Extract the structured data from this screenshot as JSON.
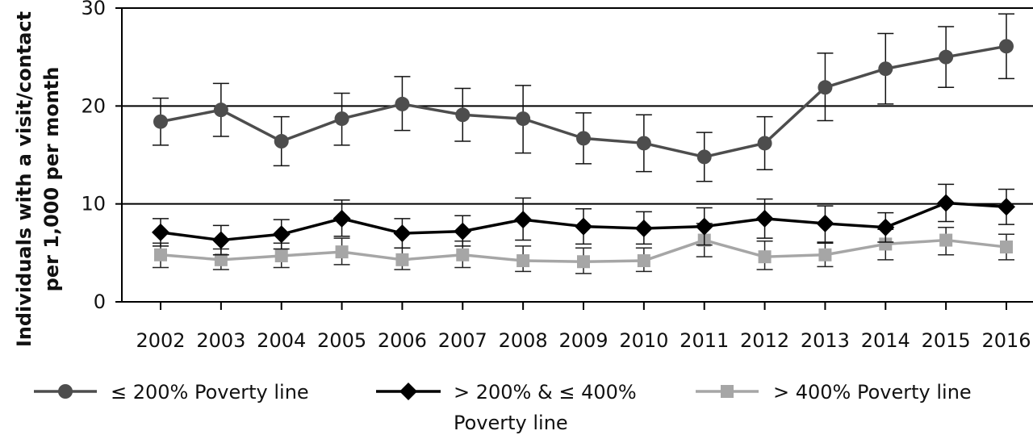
{
  "chart_data": {
    "type": "line",
    "title": "",
    "xlabel": "",
    "ylabel_lines": [
      "Individuals with a visit/contact",
      "per 1,000 per month"
    ],
    "categories": [
      "2002",
      "2003",
      "2004",
      "2005",
      "2006",
      "2007",
      "2008",
      "2009",
      "2010",
      "2011",
      "2012",
      "2013",
      "2014",
      "2015",
      "2016"
    ],
    "ylim": [
      0,
      30
    ],
    "yticks": [
      0,
      10,
      20,
      30
    ],
    "gridlines_y": [
      10,
      20,
      30
    ],
    "grid": true,
    "legend_position": "bottom",
    "series": [
      {
        "name": "≤ 200% Poverty line",
        "legend_lines": [
          "≤ 200% Poverty line"
        ],
        "marker": "circle",
        "color": "#4d4d4d",
        "values": [
          18.4,
          19.6,
          16.4,
          18.7,
          20.2,
          19.1,
          18.7,
          16.7,
          16.2,
          14.8,
          16.2,
          21.9,
          23.8,
          25.0,
          26.1
        ],
        "err_low": [
          16.0,
          16.9,
          13.9,
          16.0,
          17.5,
          16.4,
          15.2,
          14.1,
          13.3,
          12.3,
          13.5,
          18.5,
          20.2,
          21.9,
          22.8
        ],
        "err_high": [
          20.8,
          22.3,
          18.9,
          21.3,
          23.0,
          21.8,
          22.1,
          19.3,
          19.1,
          17.3,
          18.9,
          25.4,
          27.4,
          28.1,
          29.4
        ]
      },
      {
        "name": "> 200% & ≤ 400% Poverty line",
        "legend_lines": [
          "> 200% & ≤ 400%",
          "Poverty line"
        ],
        "marker": "diamond",
        "color": "#000000",
        "values": [
          7.1,
          6.3,
          6.9,
          8.5,
          7.0,
          7.2,
          8.4,
          7.7,
          7.5,
          7.7,
          8.5,
          8.0,
          7.6,
          10.1,
          9.7
        ],
        "err_low": [
          5.7,
          4.8,
          5.4,
          6.7,
          5.5,
          5.7,
          6.3,
          5.9,
          5.9,
          5.8,
          6.5,
          6.0,
          6.1,
          8.2,
          7.9
        ],
        "err_high": [
          8.5,
          7.8,
          8.4,
          10.4,
          8.5,
          8.8,
          10.6,
          9.5,
          9.2,
          9.6,
          10.5,
          9.8,
          9.1,
          12.0,
          11.5
        ]
      },
      {
        "name": "> 400% Poverty line",
        "legend_lines": [
          "> 400% Poverty line"
        ],
        "marker": "square",
        "color": "#a6a6a6",
        "values": [
          4.8,
          4.3,
          4.7,
          5.1,
          4.3,
          4.8,
          4.2,
          4.1,
          4.2,
          6.3,
          4.6,
          4.8,
          5.9,
          6.3,
          5.6
        ],
        "err_low": [
          3.5,
          3.3,
          3.5,
          3.8,
          3.3,
          3.5,
          3.1,
          2.9,
          3.1,
          4.6,
          3.3,
          3.6,
          4.3,
          4.8,
          4.3
        ],
        "err_high": [
          6.0,
          5.4,
          6.0,
          6.5,
          5.5,
          6.2,
          5.7,
          5.5,
          5.5,
          8.0,
          6.2,
          6.1,
          7.4,
          7.6,
          6.9
        ]
      }
    ]
  }
}
